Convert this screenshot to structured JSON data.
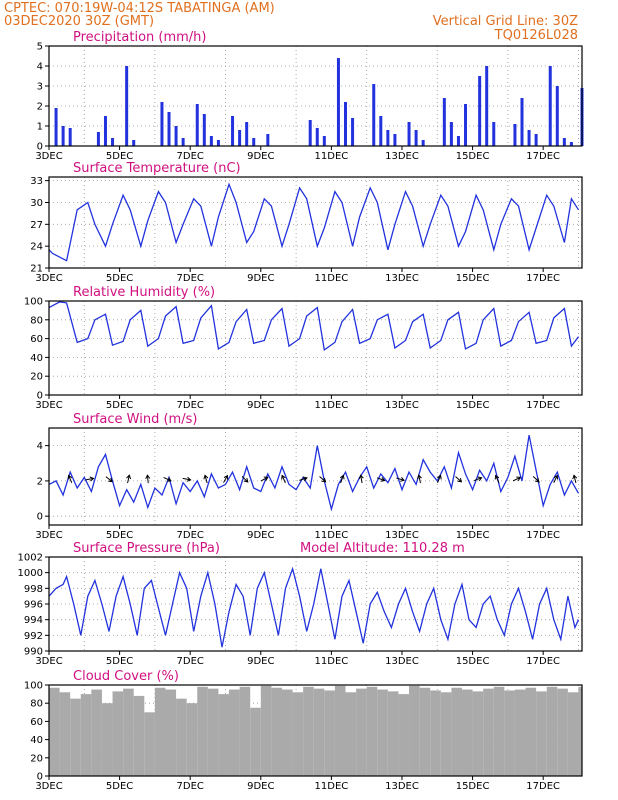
{
  "header": {
    "line1_left": "CPTEC:     070:19W-04:12S   TABATINGA (AM)",
    "line2_left": "03DEC2020 30Z (GMT)",
    "line2_right": "Vertical Grid Line: 30Z",
    "line3_right": "TQ0126L028"
  },
  "colors": {
    "header": "#e07020",
    "title": "#d01080",
    "series": "#2233dd",
    "cloud": "#aaaaaa",
    "grid": "#999999"
  },
  "chart_data": [
    {
      "type": "bar",
      "title": "Precipitation (mm/h)",
      "x_labels": [
        "3DEC",
        "5DEC",
        "7DEC",
        "9DEC",
        "11DEC",
        "13DEC",
        "15DEC",
        "17DEC"
      ],
      "ylim": [
        0,
        5
      ],
      "yticks": [
        "0",
        "1",
        "2",
        "3",
        "4",
        "5"
      ],
      "x": [
        3.2,
        3.4,
        3.6,
        4.4,
        4.6,
        4.8,
        5.2,
        5.4,
        6.2,
        6.4,
        6.6,
        6.8,
        7.2,
        7.4,
        7.6,
        7.8,
        8.2,
        8.4,
        8.6,
        8.8,
        9.2,
        10.4,
        10.6,
        10.8,
        11.2,
        11.4,
        11.6,
        12.2,
        12.4,
        12.6,
        12.8,
        13.2,
        13.4,
        13.6,
        14.2,
        14.4,
        14.6,
        14.8,
        15.2,
        15.4,
        15.6,
        16.2,
        16.4,
        16.6,
        16.8,
        17.2,
        17.4,
        17.6,
        17.8,
        18.1
      ],
      "values": [
        1.9,
        1.0,
        0.9,
        0.7,
        1.5,
        0.4,
        4.0,
        0.3,
        2.2,
        1.7,
        1.0,
        0.4,
        2.1,
        1.6,
        0.5,
        0.3,
        1.5,
        0.8,
        1.2,
        0.4,
        0.6,
        1.3,
        0.9,
        0.5,
        4.4,
        2.2,
        1.4,
        3.1,
        1.5,
        0.8,
        0.6,
        1.2,
        0.8,
        0.3,
        2.4,
        1.2,
        0.5,
        2.1,
        3.5,
        4.0,
        1.2,
        1.1,
        2.4,
        0.8,
        0.6,
        4.0,
        3.0,
        0.4,
        0.2,
        2.9
      ]
    },
    {
      "type": "line",
      "title": "Surface Temperature (nC)",
      "x_labels": [
        "3DEC",
        "5DEC",
        "7DEC",
        "9DEC",
        "11DEC",
        "13DEC",
        "15DEC",
        "17DEC"
      ],
      "ylim": [
        21,
        33.5
      ],
      "yticks": [
        "21",
        "24",
        "27",
        "30",
        "33"
      ],
      "x": [
        3.0,
        3.1,
        3.3,
        3.5,
        3.8,
        4.1,
        4.3,
        4.6,
        4.8,
        5.1,
        5.3,
        5.6,
        5.8,
        6.1,
        6.3,
        6.6,
        6.8,
        7.1,
        7.3,
        7.6,
        7.8,
        8.1,
        8.3,
        8.6,
        8.8,
        9.1,
        9.3,
        9.6,
        9.8,
        10.1,
        10.3,
        10.6,
        10.8,
        11.1,
        11.3,
        11.6,
        11.8,
        12.1,
        12.3,
        12.6,
        12.8,
        13.1,
        13.3,
        13.6,
        13.8,
        14.1,
        14.3,
        14.6,
        14.8,
        15.1,
        15.3,
        15.6,
        15.8,
        16.1,
        16.3,
        16.6,
        16.8,
        17.1,
        17.3,
        17.6,
        17.8,
        18.0
      ],
      "values": [
        23.5,
        23.0,
        22.5,
        22.0,
        29.0,
        30.0,
        27.0,
        24.0,
        27.0,
        31.0,
        29.0,
        24.0,
        27.5,
        31.5,
        30.0,
        24.5,
        27.0,
        30.5,
        29.5,
        24.0,
        28.0,
        32.5,
        30.0,
        24.5,
        26.0,
        30.5,
        29.5,
        24.0,
        27.0,
        32.0,
        30.5,
        24.0,
        26.5,
        31.5,
        30.0,
        24.0,
        28.0,
        32.0,
        30.0,
        23.5,
        27.0,
        31.5,
        29.5,
        24.0,
        27.0,
        31.0,
        29.5,
        24.0,
        26.0,
        31.0,
        29.0,
        23.5,
        27.0,
        30.5,
        29.5,
        23.5,
        26.5,
        31.0,
        29.5,
        24.5,
        30.5,
        29.0
      ]
    },
    {
      "type": "line",
      "title": "Relative Humidity (%)",
      "x_labels": [
        "3DEC",
        "5DEC",
        "7DEC",
        "9DEC",
        "11DEC",
        "13DEC",
        "15DEC",
        "17DEC"
      ],
      "ylim": [
        0,
        100
      ],
      "yticks": [
        "0",
        "20",
        "40",
        "60",
        "80",
        "100"
      ],
      "x": [
        3.0,
        3.3,
        3.5,
        3.8,
        4.1,
        4.3,
        4.6,
        4.8,
        5.1,
        5.3,
        5.6,
        5.8,
        6.1,
        6.3,
        6.6,
        6.8,
        7.1,
        7.3,
        7.6,
        7.8,
        8.1,
        8.3,
        8.6,
        8.8,
        9.1,
        9.3,
        9.6,
        9.8,
        10.1,
        10.3,
        10.6,
        10.8,
        11.1,
        11.3,
        11.6,
        11.8,
        12.1,
        12.3,
        12.6,
        12.8,
        13.1,
        13.3,
        13.6,
        13.8,
        14.1,
        14.3,
        14.6,
        14.8,
        15.1,
        15.3,
        15.6,
        15.8,
        16.1,
        16.3,
        16.6,
        16.8,
        17.1,
        17.3,
        17.6,
        17.8,
        18.0
      ],
      "values": [
        93,
        99,
        98,
        56,
        60,
        80,
        86,
        53,
        57,
        80,
        90,
        52,
        60,
        84,
        94,
        55,
        58,
        82,
        95,
        49,
        56,
        78,
        91,
        55,
        58,
        80,
        92,
        52,
        60,
        84,
        93,
        48,
        56,
        78,
        91,
        55,
        60,
        80,
        86,
        50,
        58,
        78,
        86,
        50,
        58,
        80,
        88,
        49,
        55,
        80,
        92,
        52,
        58,
        78,
        88,
        55,
        58,
        82,
        92,
        52,
        62
      ]
    },
    {
      "type": "line",
      "title": "Surface Wind (m/s)",
      "x_labels": [
        "3DEC",
        "5DEC",
        "7DEC",
        "9DEC",
        "11DEC",
        "13DEC",
        "15DEC",
        "17DEC"
      ],
      "ylim": [
        -0.5,
        5
      ],
      "yticks": [
        "0",
        "2",
        "4"
      ],
      "x": [
        3.0,
        3.2,
        3.4,
        3.6,
        3.8,
        4.0,
        4.2,
        4.4,
        4.6,
        4.8,
        5.0,
        5.2,
        5.4,
        5.6,
        5.8,
        6.0,
        6.2,
        6.4,
        6.6,
        6.8,
        7.0,
        7.2,
        7.4,
        7.6,
        7.8,
        8.0,
        8.2,
        8.4,
        8.6,
        8.8,
        9.0,
        9.2,
        9.4,
        9.6,
        9.8,
        10.0,
        10.2,
        10.4,
        10.6,
        10.8,
        11.0,
        11.2,
        11.4,
        11.6,
        11.8,
        12.0,
        12.2,
        12.4,
        12.6,
        12.8,
        13.0,
        13.2,
        13.4,
        13.6,
        13.8,
        14.0,
        14.2,
        14.4,
        14.6,
        14.8,
        15.0,
        15.2,
        15.4,
        15.6,
        15.8,
        16.0,
        16.2,
        16.4,
        16.6,
        16.8,
        17.0,
        17.2,
        17.4,
        17.6,
        17.8,
        18.0
      ],
      "values": [
        1.8,
        2.0,
        1.2,
        2.5,
        1.6,
        2.2,
        1.4,
        2.8,
        3.5,
        2.0,
        0.6,
        1.5,
        0.8,
        1.8,
        0.5,
        1.6,
        1.2,
        2.2,
        0.7,
        1.9,
        1.4,
        2.0,
        1.1,
        2.4,
        1.6,
        1.8,
        2.5,
        1.5,
        2.8,
        1.6,
        1.4,
        2.4,
        1.6,
        2.8,
        1.8,
        1.5,
        2.2,
        1.6,
        4.0,
        2.0,
        0.4,
        1.8,
        2.5,
        1.4,
        2.2,
        2.8,
        1.6,
        2.4,
        1.9,
        2.7,
        1.5,
        2.5,
        1.8,
        3.2,
        2.5,
        2.0,
        2.8,
        1.6,
        3.6,
        2.4,
        1.5,
        2.6,
        2.0,
        3.0,
        1.4,
        2.2,
        3.4,
        2.0,
        4.6,
        2.6,
        0.6,
        1.8,
        2.5,
        1.2,
        2.0,
        1.3
      ]
    },
    {
      "type": "line",
      "title": "Surface Pressure (hPa)",
      "annotation": "Model Altitude: 110.28 m",
      "x_labels": [
        "3DEC",
        "5DEC",
        "7DEC",
        "9DEC",
        "11DEC",
        "13DEC",
        "15DEC",
        "17DEC"
      ],
      "ylim": [
        990,
        1002
      ],
      "yticks": [
        "990",
        "992",
        "994",
        "996",
        "998",
        "1000",
        "1002"
      ],
      "x": [
        3.0,
        3.2,
        3.4,
        3.5,
        3.7,
        3.9,
        4.1,
        4.3,
        4.5,
        4.7,
        4.9,
        5.1,
        5.3,
        5.5,
        5.7,
        5.9,
        6.1,
        6.3,
        6.5,
        6.7,
        6.9,
        7.1,
        7.3,
        7.5,
        7.7,
        7.9,
        8.1,
        8.3,
        8.5,
        8.7,
        8.9,
        9.1,
        9.3,
        9.5,
        9.7,
        9.9,
        10.1,
        10.3,
        10.5,
        10.7,
        10.9,
        11.1,
        11.3,
        11.5,
        11.7,
        11.9,
        12.1,
        12.3,
        12.5,
        12.7,
        12.9,
        13.1,
        13.3,
        13.5,
        13.7,
        13.9,
        14.1,
        14.3,
        14.5,
        14.7,
        14.9,
        15.1,
        15.3,
        15.5,
        15.7,
        15.9,
        16.1,
        16.3,
        16.5,
        16.7,
        16.9,
        17.1,
        17.3,
        17.5,
        17.7,
        17.9,
        18.0
      ],
      "values": [
        997,
        998,
        998.5,
        999.5,
        996,
        992,
        997,
        999,
        996,
        992.5,
        997,
        999.5,
        996,
        992,
        998,
        999,
        995.5,
        992,
        996,
        1000,
        998,
        992.5,
        997,
        1000,
        996,
        990.5,
        995,
        998.5,
        997,
        992,
        998,
        1000,
        996,
        992,
        998,
        1000.5,
        997,
        992.5,
        996,
        1000.5,
        996,
        991.5,
        997,
        999,
        995,
        991,
        996,
        997.5,
        995,
        993,
        996,
        998,
        995,
        992.5,
        996,
        998,
        994,
        991.5,
        996,
        998.5,
        994,
        993,
        996,
        997,
        994,
        992,
        996,
        998,
        995,
        991.5,
        996,
        998,
        994,
        991.5,
        997,
        993,
        994
      ]
    },
    {
      "type": "bar",
      "title": "Cloud Cover (%)",
      "x_labels": [
        "3DEC",
        "5DEC",
        "7DEC",
        "9DEC",
        "11DEC",
        "13DEC",
        "15DEC",
        "17DEC"
      ],
      "ylim": [
        0,
        100
      ],
      "yticks": [
        "0",
        "20",
        "40",
        "60",
        "80",
        "100"
      ],
      "x": [
        3.0,
        3.3,
        3.6,
        3.9,
        4.2,
        4.5,
        4.8,
        5.1,
        5.4,
        5.7,
        6.0,
        6.3,
        6.6,
        6.9,
        7.2,
        7.5,
        7.8,
        8.1,
        8.4,
        8.7,
        9.0,
        9.3,
        9.6,
        9.9,
        10.2,
        10.5,
        10.8,
        11.1,
        11.4,
        11.7,
        12.0,
        12.3,
        12.6,
        12.9,
        13.2,
        13.5,
        13.8,
        14.1,
        14.4,
        14.7,
        15.0,
        15.3,
        15.6,
        15.9,
        16.2,
        16.5,
        16.8,
        17.1,
        17.4,
        17.7,
        18.0
      ],
      "values": [
        97,
        92,
        85,
        90,
        95,
        80,
        93,
        96,
        88,
        70,
        97,
        95,
        85,
        80,
        98,
        96,
        90,
        95,
        98,
        75,
        99,
        97,
        95,
        92,
        98,
        96,
        94,
        99,
        92,
        96,
        98,
        95,
        93,
        90,
        99,
        97,
        94,
        92,
        97,
        95,
        93,
        96,
        98,
        94,
        95,
        97,
        93,
        98,
        96,
        92,
        98
      ]
    }
  ]
}
